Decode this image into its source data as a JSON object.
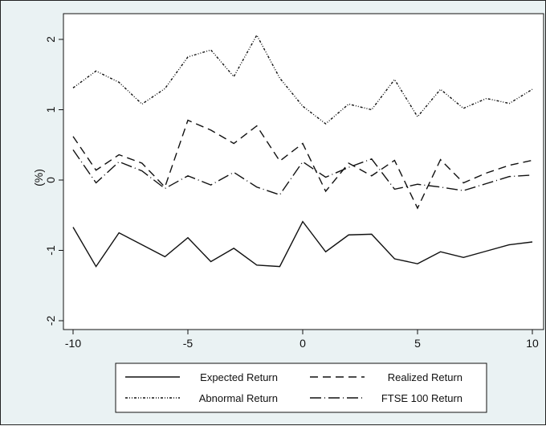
{
  "chart_data": {
    "type": "line",
    "title": "",
    "xlabel": "",
    "ylabel": "(%)",
    "xlim": [
      -10,
      10
    ],
    "ylim": [
      -2.2,
      2.2
    ],
    "x_ticks": [
      -10,
      -5,
      0,
      5,
      10
    ],
    "y_ticks": [
      -2,
      -1,
      0,
      1,
      2
    ],
    "grid": false,
    "legend_position": "bottom",
    "x": [
      -10,
      -9,
      -8,
      -7,
      -6,
      -5,
      -4,
      -3,
      -2,
      -1,
      0,
      1,
      2,
      3,
      4,
      5,
      6,
      7,
      8,
      9,
      10
    ],
    "series": [
      {
        "name": "Expected Return",
        "style": "solid",
        "values": [
          -0.67,
          -1.23,
          -0.75,
          -0.92,
          -1.09,
          -0.82,
          -1.16,
          -0.97,
          -1.21,
          -1.23,
          -0.59,
          -1.02,
          -0.78,
          -0.77,
          -1.12,
          -1.19,
          -1.02,
          -1.1,
          -1.01,
          -0.92,
          -0.88
        ]
      },
      {
        "name": "Realized Return",
        "style": "dash",
        "values": [
          0.62,
          0.14,
          0.36,
          0.24,
          -0.1,
          0.85,
          0.71,
          0.52,
          0.77,
          0.27,
          0.52,
          -0.16,
          0.24,
          0.06,
          0.28,
          -0.4,
          0.29,
          -0.04,
          0.1,
          0.21,
          0.28
        ]
      },
      {
        "name": "Abnormal Return",
        "style": "dash-dot-dot",
        "values": [
          1.31,
          1.55,
          1.39,
          1.08,
          1.3,
          1.75,
          1.85,
          1.47,
          2.06,
          1.45,
          1.05,
          0.8,
          1.08,
          1.0,
          1.43,
          0.9,
          1.29,
          1.02,
          1.16,
          1.09,
          1.29
        ]
      },
      {
        "name": "FTSE 100 Return",
        "style": "long-dash-dot",
        "values": [
          0.43,
          -0.04,
          0.26,
          0.13,
          -0.12,
          0.06,
          -0.07,
          0.11,
          -0.1,
          -0.21,
          0.26,
          0.04,
          0.18,
          0.3,
          -0.13,
          -0.06,
          -0.1,
          -0.15,
          -0.05,
          0.05,
          0.07
        ]
      }
    ]
  },
  "colors": {
    "background": "#eaf2f3",
    "plot_background": "#ffffff",
    "line": "#111111"
  }
}
